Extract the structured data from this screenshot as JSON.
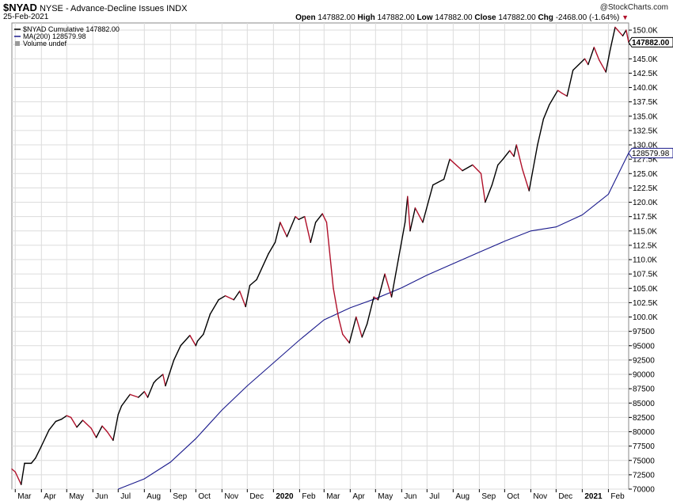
{
  "header": {
    "symbol": "$NYAD",
    "description": "NYSE - Advance-Decline Issues",
    "exchange": "INDX",
    "date": "25-Feb-2021",
    "watermark": "@StockCharts.com",
    "open_label": "Open",
    "open": "147882.00",
    "high_label": "High",
    "high": "147882.00",
    "low_label": "Low",
    "low": "147882.00",
    "close_label": "Close",
    "close": "147882.00",
    "chg_label": "Chg",
    "chg": "-2468.00 (-1.64%)"
  },
  "legend": {
    "series1": "$NYAD Cumulative 147882.00",
    "series2": "MA(200) 128579.98",
    "series3": "Volume undef"
  },
  "price_tags": {
    "last": "147882.00",
    "ma": "128579.98"
  },
  "colors": {
    "up": "#000000",
    "down": "#b0102a",
    "ma": "#1a1a8c",
    "grid": "#dcdcdc"
  },
  "chart_data": {
    "type": "line",
    "title": "$NYAD NYSE - Advance-Decline Issues",
    "x_tick_labels": [
      "Mar",
      "Apr",
      "May",
      "Jun",
      "Jul",
      "Aug",
      "Sep",
      "Oct",
      "Nov",
      "Dec",
      "2020",
      "Feb",
      "Mar",
      "Apr",
      "May",
      "Jun",
      "Jul",
      "Aug",
      "Sep",
      "Oct",
      "Nov",
      "Dec",
      "2021",
      "Feb"
    ],
    "y_tick_labels": [
      "70000",
      "72500",
      "75000",
      "77500",
      "80000",
      "82500",
      "85000",
      "87500",
      "90000",
      "92500",
      "95000",
      "97500",
      "100.0K",
      "102.5K",
      "105.0K",
      "107.5K",
      "110.0K",
      "112.5K",
      "115.0K",
      "117.5K",
      "120.0K",
      "122.5K",
      "125.0K",
      "127.5K",
      "130.0K",
      "132.5K",
      "135.0K",
      "137.5K",
      "140.0K",
      "142.5K",
      "145.0K",
      "147.5K",
      "150.0K"
    ],
    "ylim": [
      70000,
      151250
    ],
    "grid": true,
    "legend_position": "top-left",
    "series": [
      {
        "name": "$NYAD Cumulative",
        "x": [
          "2019-02-25",
          "2019-03-01",
          "2019-03-08",
          "2019-03-12",
          "2019-03-20",
          "2019-03-25",
          "2019-04-01",
          "2019-04-10",
          "2019-04-18",
          "2019-04-25",
          "2019-05-01",
          "2019-05-06",
          "2019-05-13",
          "2019-05-20",
          "2019-05-30",
          "2019-06-05",
          "2019-06-12",
          "2019-06-18",
          "2019-06-25",
          "2019-07-01",
          "2019-07-05",
          "2019-07-15",
          "2019-07-25",
          "2019-08-01",
          "2019-08-05",
          "2019-08-12",
          "2019-08-15",
          "2019-08-23",
          "2019-08-26",
          "2019-09-05",
          "2019-09-13",
          "2019-09-24",
          "2019-10-01",
          "2019-10-03",
          "2019-10-10",
          "2019-10-18",
          "2019-10-28",
          "2019-11-05",
          "2019-11-15",
          "2019-11-22",
          "2019-11-29",
          "2019-12-04",
          "2019-12-12",
          "2019-12-26",
          "2020-01-03",
          "2020-01-09",
          "2020-01-17",
          "2020-01-27",
          "2020-01-31",
          "2020-02-07",
          "2020-02-14",
          "2020-02-20",
          "2020-02-28",
          "2020-03-04",
          "2020-03-12",
          "2020-03-18",
          "2020-03-23",
          "2020-03-31",
          "2020-04-08",
          "2020-04-15",
          "2020-04-21",
          "2020-04-29",
          "2020-05-04",
          "2020-05-12",
          "2020-05-20",
          "2020-05-28",
          "2020-06-05",
          "2020-06-08",
          "2020-06-11",
          "2020-06-17",
          "2020-06-26",
          "2020-07-08",
          "2020-07-21",
          "2020-07-28",
          "2020-08-12",
          "2020-08-24",
          "2020-09-03",
          "2020-09-08",
          "2020-09-16",
          "2020-09-23",
          "2020-09-29",
          "2020-10-07",
          "2020-10-12",
          "2020-10-15",
          "2020-10-22",
          "2020-10-30",
          "2020-11-09",
          "2020-11-16",
          "2020-11-23",
          "2020-12-03",
          "2020-12-08",
          "2020-12-14",
          "2020-12-21",
          "2021-01-04",
          "2021-01-08",
          "2021-01-15",
          "2021-01-21",
          "2021-01-29",
          "2021-02-03",
          "2021-02-09",
          "2021-02-12",
          "2021-02-18",
          "2021-02-22",
          "2021-02-25"
        ],
        "y": [
          73500,
          73000,
          70800,
          74500,
          74500,
          75400,
          77500,
          80300,
          81800,
          82200,
          82800,
          82500,
          80800,
          82000,
          80600,
          79000,
          81000,
          80000,
          78500,
          83000,
          84500,
          86500,
          86000,
          87000,
          86000,
          88500,
          89000,
          90000,
          88000,
          92500,
          95000,
          96800,
          95000,
          95800,
          97000,
          100500,
          103000,
          103700,
          103000,
          104500,
          101800,
          105500,
          106500,
          111000,
          113000,
          116500,
          114000,
          117500,
          117000,
          117500,
          113000,
          116500,
          118000,
          116500,
          105000,
          100000,
          97000,
          95500,
          100000,
          96500,
          98800,
          103500,
          103000,
          107500,
          103500,
          110000,
          116500,
          121000,
          115000,
          119000,
          116500,
          123000,
          124000,
          127500,
          125500,
          126500,
          125000,
          120000,
          123000,
          126500,
          127500,
          129000,
          128000,
          130000,
          125800,
          122000,
          130000,
          134500,
          137000,
          139500,
          139000,
          138500,
          143000,
          145000,
          144000,
          147000,
          144800,
          142700,
          146500,
          150500,
          150000,
          149000,
          150000,
          147882
        ]
      },
      {
        "name": "MA(200)",
        "x": [
          "2019-07-01",
          "2019-08-01",
          "2019-09-01",
          "2019-10-01",
          "2019-11-01",
          "2019-12-01",
          "2020-01-01",
          "2020-02-01",
          "2020-03-01",
          "2020-04-01",
          "2020-05-01",
          "2020-06-01",
          "2020-07-01",
          "2020-08-01",
          "2020-09-01",
          "2020-10-01",
          "2020-11-01",
          "2020-12-01",
          "2021-01-01",
          "2021-02-01",
          "2021-02-25"
        ],
        "y": [
          70000,
          71800,
          74700,
          78800,
          83800,
          88000,
          92000,
          96000,
          99500,
          101600,
          103200,
          105100,
          107300,
          109300,
          111300,
          113200,
          115000,
          115700,
          117800,
          121400,
          128580
        ]
      }
    ],
    "last_value": 147882,
    "ma_value": 128579.98
  }
}
